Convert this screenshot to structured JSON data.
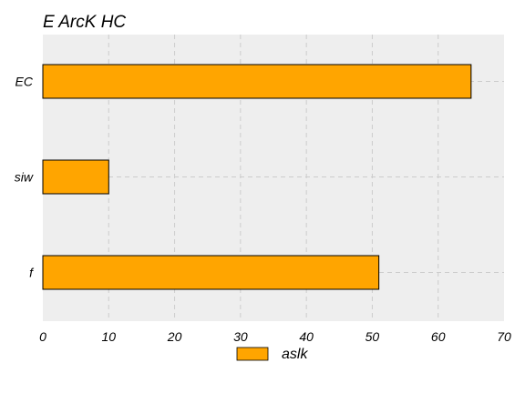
{
  "chart_data": {
    "type": "bar",
    "orientation": "horizontal",
    "title": "E ArcK HC",
    "categories": [
      "EC",
      "siw",
      "f"
    ],
    "series": [
      {
        "name": "aslk",
        "values": [
          65,
          10,
          51
        ],
        "color": "#FFA500"
      }
    ],
    "xlim": [
      0,
      70
    ],
    "xticks": [
      "0",
      "10",
      "20",
      "30",
      "40",
      "50",
      "60",
      "70"
    ],
    "grid": true,
    "background": "#EEEEEE",
    "legend": {
      "position": "bottom-center"
    }
  }
}
